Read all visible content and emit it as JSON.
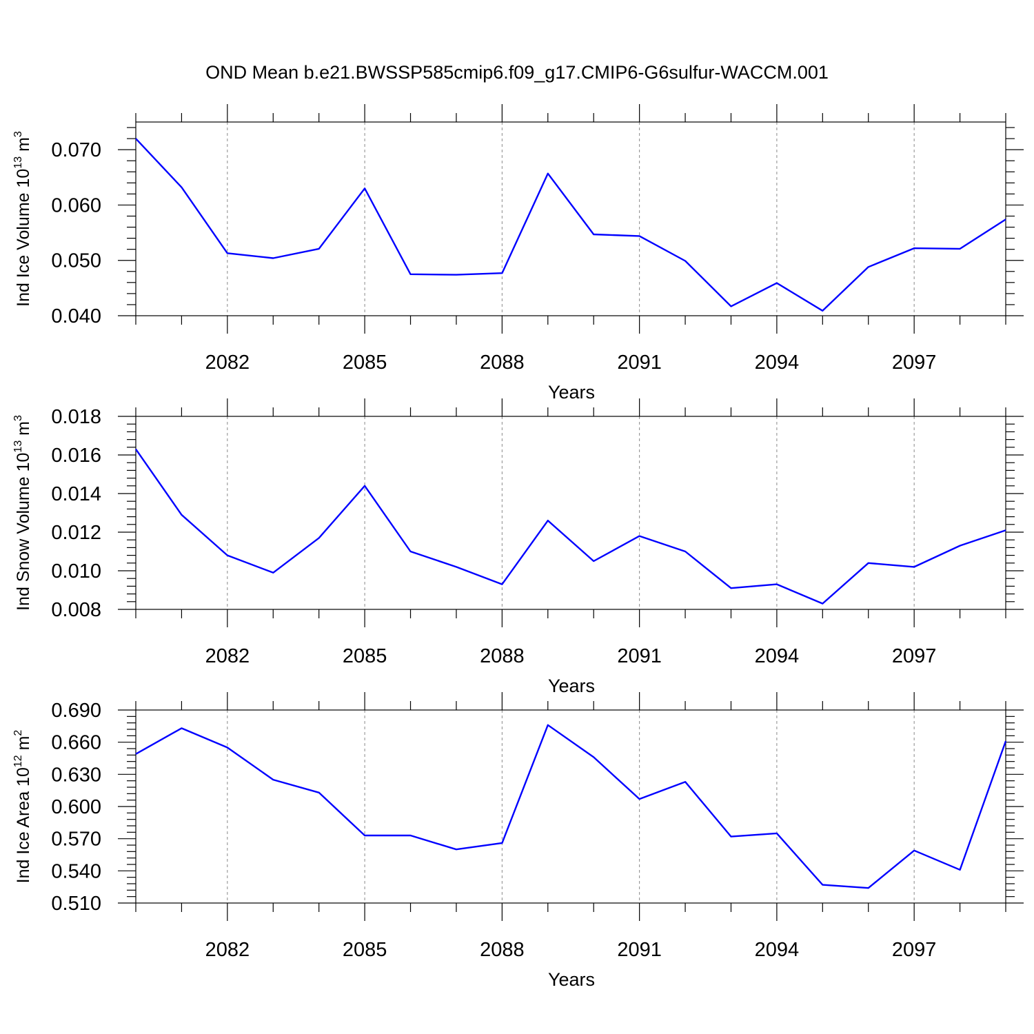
{
  "title": "OND Mean b.e21.BWSSP585cmip6.f09_g17.CMIP6-G6sulfur-WACCM.001",
  "colors": {
    "line": "#0000ff",
    "axis": "#000000",
    "grid": "#888888"
  },
  "chart_data": [
    {
      "type": "line",
      "ylabel": {
        "prefix": "Ind Ice Volume 10",
        "exponent": "13",
        "unit": " m",
        "unit_exponent": "3"
      },
      "xlabel": "Years",
      "xlim": [
        2080,
        2099
      ],
      "ylim": [
        0.04,
        0.075
      ],
      "xticks": [
        2082,
        2085,
        2088,
        2091,
        2094,
        2097
      ],
      "yticks": [
        0.04,
        0.05,
        0.06,
        0.07
      ],
      "ytick_labels": [
        "0.040",
        "0.050",
        "0.060",
        "0.070"
      ],
      "grid": "x-dashed",
      "series": [
        {
          "x": [
            2080,
            2081,
            2082,
            2083,
            2084,
            2085,
            2086,
            2087,
            2088,
            2089,
            2090,
            2091,
            2092,
            2093,
            2094,
            2095,
            2096,
            2097,
            2098,
            2099
          ],
          "values": [
            0.072,
            0.0632,
            0.0513,
            0.0504,
            0.0521,
            0.063,
            0.0475,
            0.0474,
            0.0477,
            0.0657,
            0.0547,
            0.0544,
            0.0499,
            0.0417,
            0.0459,
            0.0409,
            0.0488,
            0.0522,
            0.0521,
            0.0574
          ]
        }
      ]
    },
    {
      "type": "line",
      "ylabel": {
        "prefix": "Ind Snow Volume 10",
        "exponent": "13",
        "unit": " m",
        "unit_exponent": "3"
      },
      "xlabel": "Years",
      "xlim": [
        2080,
        2099
      ],
      "ylim": [
        0.008,
        0.018
      ],
      "xticks": [
        2082,
        2085,
        2088,
        2091,
        2094,
        2097
      ],
      "yticks": [
        0.008,
        0.01,
        0.012,
        0.014,
        0.016,
        0.018
      ],
      "ytick_labels": [
        "0.008",
        "0.010",
        "0.012",
        "0.014",
        "0.016",
        "0.018"
      ],
      "grid": "x-dashed",
      "series": [
        {
          "x": [
            2080,
            2081,
            2082,
            2083,
            2084,
            2085,
            2086,
            2087,
            2088,
            2089,
            2090,
            2091,
            2092,
            2093,
            2094,
            2095,
            2096,
            2097,
            2098,
            2099
          ],
          "values": [
            0.0163,
            0.0129,
            0.0108,
            0.0099,
            0.0117,
            0.0144,
            0.011,
            0.0102,
            0.0093,
            0.0126,
            0.0105,
            0.0118,
            0.011,
            0.0091,
            0.0093,
            0.0083,
            0.0104,
            0.0102,
            0.0113,
            0.0121
          ]
        }
      ]
    },
    {
      "type": "line",
      "ylabel": {
        "prefix": "Ind Ice Area 10",
        "exponent": "12",
        "unit": " m",
        "unit_exponent": "2"
      },
      "xlabel": "Years",
      "xlim": [
        2080,
        2099
      ],
      "ylim": [
        0.51,
        0.69
      ],
      "xticks": [
        2082,
        2085,
        2088,
        2091,
        2094,
        2097
      ],
      "yticks": [
        0.51,
        0.54,
        0.57,
        0.6,
        0.63,
        0.66,
        0.69
      ],
      "ytick_labels": [
        "0.510",
        "0.540",
        "0.570",
        "0.600",
        "0.630",
        "0.660",
        "0.690"
      ],
      "grid": "x-dashed",
      "series": [
        {
          "x": [
            2080,
            2081,
            2082,
            2083,
            2084,
            2085,
            2086,
            2087,
            2088,
            2089,
            2090,
            2091,
            2092,
            2093,
            2094,
            2095,
            2096,
            2097,
            2098,
            2099
          ],
          "values": [
            0.649,
            0.673,
            0.655,
            0.625,
            0.613,
            0.573,
            0.573,
            0.56,
            0.566,
            0.676,
            0.646,
            0.607,
            0.623,
            0.572,
            0.575,
            0.527,
            0.524,
            0.559,
            0.541,
            0.661
          ]
        }
      ]
    }
  ]
}
